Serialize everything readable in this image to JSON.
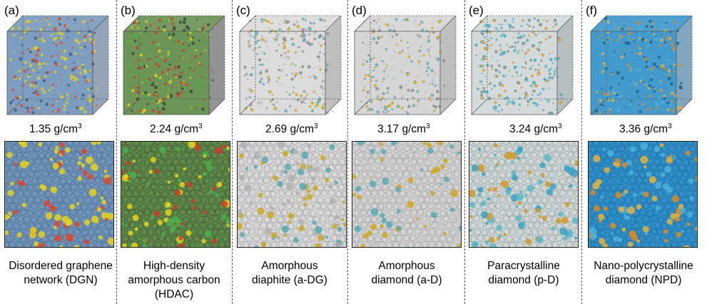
{
  "panels": [
    {
      "tag": "(a)",
      "density_value": "1.35 g/cm",
      "density_exp": "3",
      "caption_lines": [
        "Disordered graphene",
        "network (DGN)"
      ],
      "colors": {
        "base": "#6f93b9",
        "dark": "#3d5a7a",
        "a1": "#e6d21c",
        "a2": "#e0452a",
        "a3": "#e6d21c"
      }
    },
    {
      "tag": "(b)",
      "density_value": "2.24 g/cm",
      "density_exp": "3",
      "caption_lines": [
        "High-density",
        "amorphous carbon",
        "(HDAC)"
      ],
      "colors": {
        "base": "#5d8a46",
        "dark": "#3a3a3a",
        "a1": "#e6d21c",
        "a2": "#d23a2a",
        "a3": "#49b04a"
      }
    },
    {
      "tag": "(c)",
      "density_value": "2.69 g/cm",
      "density_exp": "3",
      "caption_lines": [
        "Amorphous",
        "diaphite (a-DG)"
      ],
      "colors": {
        "base": "#d8d8d8",
        "dark": "#8a8a8a",
        "a1": "#c9a825",
        "a2": "#5aa9b5",
        "a3": "#b0b0b0"
      }
    },
    {
      "tag": "(d)",
      "density_value": "3.17 g/cm",
      "density_exp": "3",
      "caption_lines": [
        "Amorphous",
        "diamond (a-D)"
      ],
      "colors": {
        "base": "#d2d2d2",
        "dark": "#8a8a8a",
        "a1": "#d0a622",
        "a2": "#5aa9b5",
        "a3": "#c9c9c9"
      }
    },
    {
      "tag": "(e)",
      "density_value": "3.24 g/cm",
      "density_exp": "3",
      "caption_lines": [
        "Paracrystalline",
        "diamond (p-D)"
      ],
      "colors": {
        "base": "#cfd6d6",
        "dark": "#7a8a8a",
        "a1": "#d19a2a",
        "a2": "#3ba2c2",
        "a3": "#5db7c9"
      }
    },
    {
      "tag": "(f)",
      "density_value": "3.36 g/cm",
      "density_exp": "3",
      "caption_lines": [
        "Nano-polycrystalline",
        "diamond (NPD)"
      ],
      "colors": {
        "base": "#2f8fc8",
        "dark": "#1c5c8a",
        "a1": "#e08a1e",
        "a2": "#e9b23a",
        "a3": "#4fb0d8"
      }
    }
  ]
}
